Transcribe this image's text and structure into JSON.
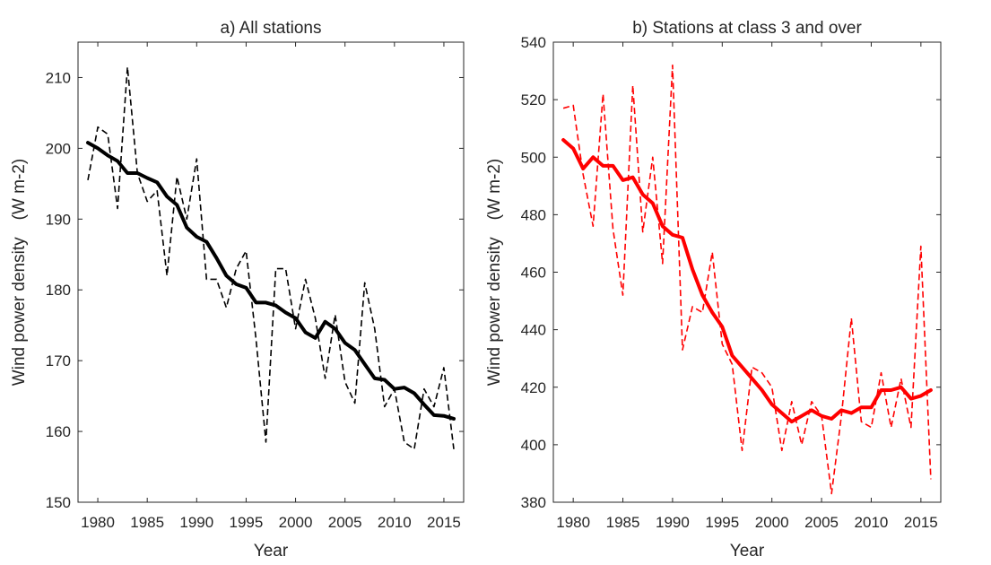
{
  "chart_data": [
    {
      "type": "line",
      "title": "a) All stations",
      "xlabel": "Year",
      "ylabel": "Wind power density　(W m-2)",
      "xlim": [
        1978,
        2017
      ],
      "ylim": [
        150,
        215
      ],
      "xticks": [
        "1980",
        "1985",
        "1990",
        "1995",
        "2000",
        "2005",
        "2010",
        "2015"
      ],
      "yticks": [
        "150",
        "160",
        "170",
        "180",
        "190",
        "200",
        "210"
      ],
      "grid": false,
      "legend": "none",
      "x": [
        1979,
        1980,
        1981,
        1982,
        1983,
        1984,
        1985,
        1986,
        1987,
        1988,
        1989,
        1990,
        1991,
        1992,
        1993,
        1994,
        1995,
        1996,
        1997,
        1998,
        1999,
        2000,
        2001,
        2002,
        2003,
        2004,
        2005,
        2006,
        2007,
        2008,
        2009,
        2010,
        2011,
        2012,
        2013,
        2014,
        2015,
        2016
      ],
      "series": [
        {
          "style": "dashed",
          "color": "#000000",
          "values": [
            195.5,
            203,
            202,
            191.5,
            211.5,
            196.5,
            192.5,
            194,
            182,
            196,
            190,
            198.5,
            181.5,
            181.5,
            177.5,
            183,
            185.5,
            173,
            158.5,
            183,
            183,
            174.5,
            181.5,
            176,
            167.5,
            176.5,
            167,
            164,
            181,
            174.5,
            163.5,
            166,
            158.5,
            157.5,
            166,
            163.5,
            169,
            157.5
          ]
        },
        {
          "style": "solid-thick",
          "color": "#000000",
          "values": [
            200.8,
            200,
            199,
            198.2,
            196.5,
            196.5,
            195.8,
            195.2,
            193.2,
            192,
            188.8,
            187.5,
            186.8,
            184.5,
            182,
            180.8,
            180.3,
            178.2,
            178.2,
            177.8,
            176.8,
            176,
            174,
            173.2,
            175.5,
            174.5,
            172.5,
            171.5,
            169.5,
            167.5,
            167.3,
            166,
            166.2,
            165.4,
            163.8,
            162.3,
            162.2,
            161.8
          ]
        }
      ]
    },
    {
      "type": "line",
      "title": "b) Stations at class 3 and over",
      "xlabel": "Year",
      "ylabel": "Wind power density　(W m-2)",
      "xlim": [
        1978,
        2017
      ],
      "ylim": [
        380,
        540
      ],
      "xticks": [
        "1980",
        "1985",
        "1990",
        "1995",
        "2000",
        "2005",
        "2010",
        "2015"
      ],
      "yticks": [
        "380",
        "400",
        "420",
        "440",
        "460",
        "480",
        "500",
        "520",
        "540"
      ],
      "grid": false,
      "legend": "none",
      "x": [
        1979,
        1980,
        1981,
        1982,
        1983,
        1984,
        1985,
        1986,
        1987,
        1988,
        1989,
        1990,
        1991,
        1992,
        1993,
        1994,
        1995,
        1996,
        1997,
        1998,
        1999,
        2000,
        2001,
        2002,
        2003,
        2004,
        2005,
        2006,
        2007,
        2008,
        2009,
        2010,
        2011,
        2012,
        2013,
        2014,
        2015,
        2016
      ],
      "series": [
        {
          "style": "dashed",
          "color": "#ff0000",
          "values": [
            517,
            518,
            494,
            476,
            522,
            475,
            452,
            525,
            474,
            500,
            463,
            532,
            433,
            448,
            446,
            467,
            435,
            428,
            398,
            427,
            425,
            420,
            398,
            415,
            400,
            415,
            410,
            383,
            410,
            444,
            408,
            406,
            425,
            406,
            423,
            406,
            469,
            388
          ]
        },
        {
          "style": "solid-thick",
          "color": "#ff0000",
          "values": [
            506,
            503,
            496,
            500,
            497,
            497,
            492,
            493,
            487,
            484,
            476,
            473,
            472,
            461,
            452,
            446,
            441,
            431,
            427,
            423,
            419,
            414,
            411,
            408,
            410,
            412,
            410,
            409,
            412,
            411,
            413,
            413,
            419,
            419,
            420,
            416,
            417,
            419
          ]
        }
      ]
    }
  ]
}
